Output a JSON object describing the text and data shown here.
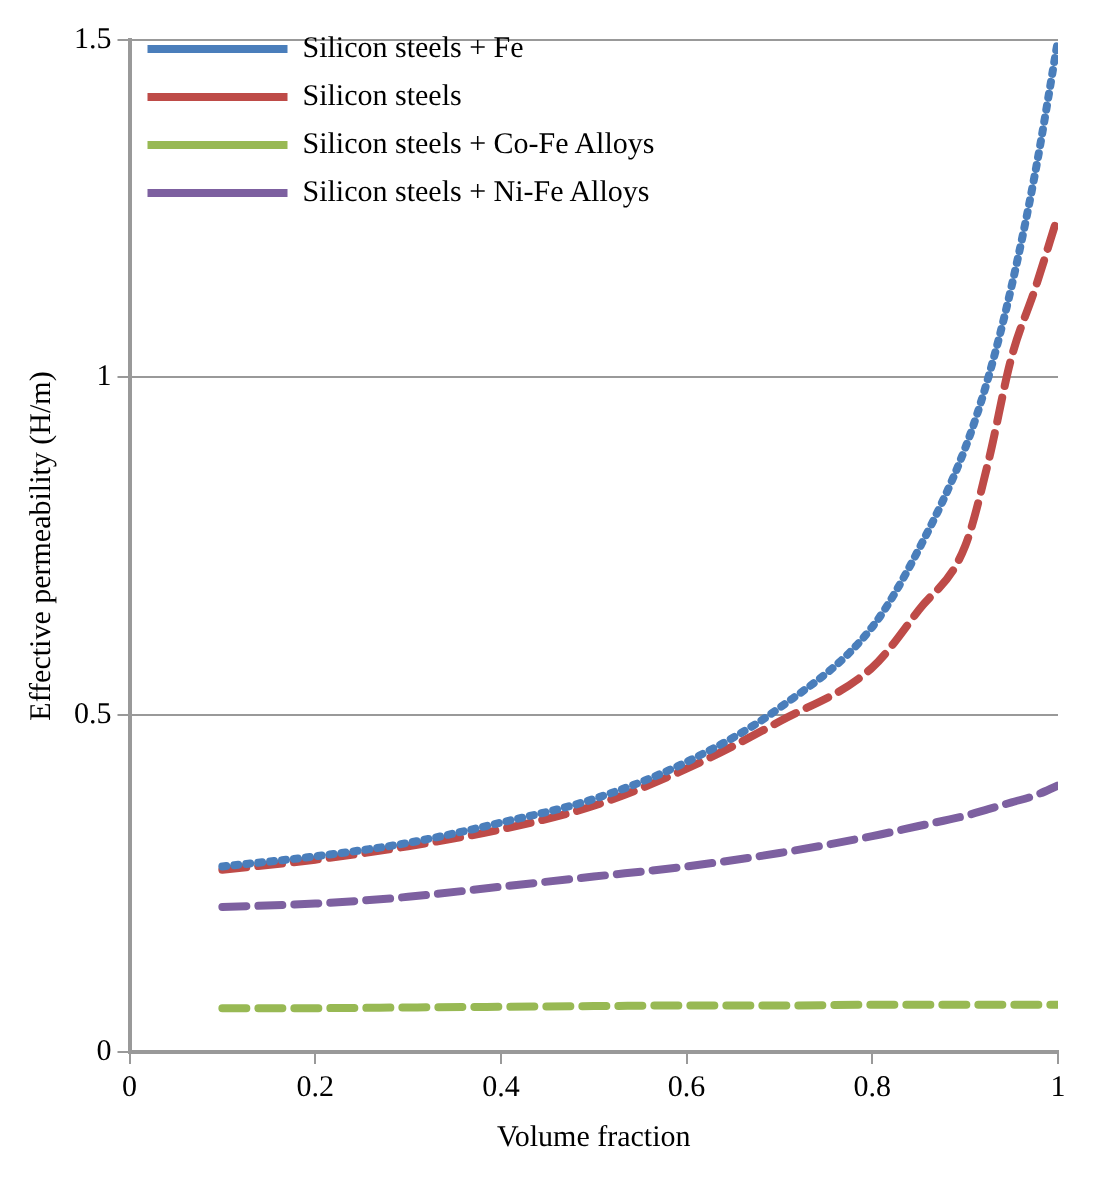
{
  "chart_data": {
    "type": "line",
    "xlabel": "Volume fraction",
    "ylabel": "Effective permeability (H/m)",
    "x": [
      0.1,
      0.2,
      0.3,
      0.4,
      0.5,
      0.6,
      0.7,
      0.8,
      0.85,
      0.9,
      0.925,
      0.95,
      0.975,
      1.0
    ],
    "series": [
      {
        "name": "Silicon steels + Fe",
        "color": "#4a7ebb",
        "line_style": "dotted",
        "values": [
          0.275,
          0.29,
          0.31,
          0.34,
          0.375,
          0.43,
          0.51,
          0.63,
          0.745,
          0.895,
          1.0,
          1.135,
          1.3,
          1.5
        ]
      },
      {
        "name": "Silicon steels",
        "color": "#be4b48",
        "line_style": "dashed",
        "values": [
          0.27,
          0.285,
          0.305,
          0.33,
          0.365,
          0.42,
          0.49,
          0.57,
          0.655,
          0.75,
          0.875,
          1.03,
          1.13,
          1.24
        ]
      },
      {
        "name": "Silicon steels + Co-Fe Alloys",
        "color": "#98b954",
        "line_style": "dashed",
        "values": [
          0.065,
          0.065,
          0.066,
          0.067,
          0.068,
          0.069,
          0.069,
          0.07,
          0.07,
          0.07,
          0.07,
          0.07,
          0.07,
          0.07
        ]
      },
      {
        "name": "Silicon steels + Ni-Fe Alloys",
        "color": "#7d60a0",
        "line_style": "dashed",
        "values": [
          0.215,
          0.22,
          0.23,
          0.245,
          0.26,
          0.275,
          0.295,
          0.32,
          0.335,
          0.35,
          0.36,
          0.37,
          0.38,
          0.395
        ]
      }
    ],
    "xlim": [
      0,
      1
    ],
    "xticks": [
      0,
      0.2,
      0.4,
      0.6,
      0.8,
      1
    ],
    "ylim": [
      0,
      1.5
    ],
    "yticks": [
      0,
      0.5,
      1,
      1.5
    ],
    "grid": "y",
    "legend": "top left",
    "marker": "none"
  }
}
